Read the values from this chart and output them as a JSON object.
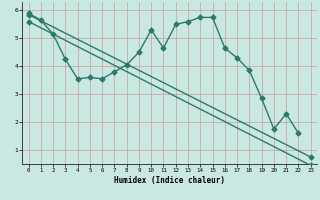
{
  "xlabel": "Humidex (Indice chaleur)",
  "bg_color": "#c9e8e2",
  "line_color": "#2a7a6a",
  "xlim": [
    -0.5,
    23.5
  ],
  "ylim": [
    0.5,
    6.3
  ],
  "yticks": [
    1,
    2,
    3,
    4,
    5,
    6
  ],
  "xticks": [
    0,
    1,
    2,
    3,
    4,
    5,
    6,
    7,
    8,
    9,
    10,
    11,
    12,
    13,
    14,
    15,
    16,
    17,
    18,
    19,
    20,
    21,
    22,
    23
  ],
  "wavy_x": [
    0,
    1,
    2,
    3,
    4,
    5,
    6,
    7,
    8,
    9,
    10,
    11,
    12,
    13,
    14,
    15,
    16,
    17,
    18,
    19,
    20,
    21,
    22
  ],
  "wavy_y": [
    5.9,
    5.65,
    5.15,
    4.25,
    3.55,
    3.6,
    3.55,
    3.8,
    4.05,
    4.5,
    5.3,
    4.65,
    5.5,
    5.6,
    5.75,
    5.75,
    4.65,
    4.3,
    3.85,
    2.85,
    1.75,
    2.3,
    1.6
  ],
  "line2_x": [
    0,
    23
  ],
  "line2_y": [
    5.85,
    0.75
  ],
  "line3_x": [
    0,
    23
  ],
  "line3_y": [
    5.6,
    0.45
  ],
  "markersize": 2.5,
  "linewidth": 1.0
}
